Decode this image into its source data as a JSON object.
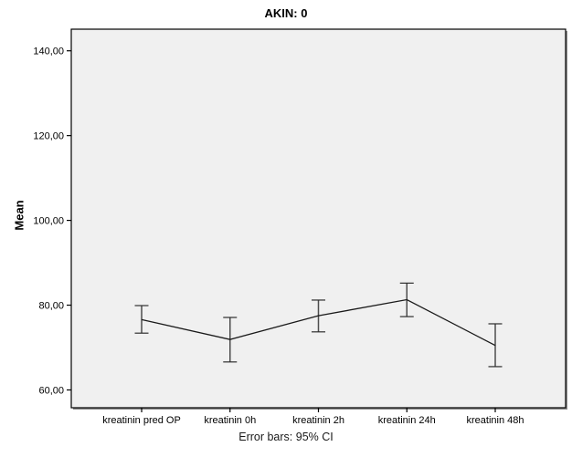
{
  "chart_data": {
    "type": "line",
    "title": "AKIN: 0",
    "ylabel": "Mean",
    "caption": "Error bars: 95% CI",
    "error_bars": "95% CI",
    "legend": "none",
    "grid": false,
    "categories": [
      "kreatinin pred OP",
      "kreatinin 0h",
      "kreatinin 2h",
      "kreatinin 24h",
      "kreatinin 48h"
    ],
    "series": [
      {
        "name": "Mean",
        "means": [
          76.6,
          71.9,
          77.5,
          81.3,
          70.5
        ],
        "ci_low": [
          73.4,
          66.6,
          73.7,
          77.3,
          65.5
        ],
        "ci_high": [
          79.9,
          77.1,
          81.2,
          85.2,
          75.6
        ]
      }
    ],
    "yticks": [
      {
        "value": 60,
        "label": "60,00"
      },
      {
        "value": 80,
        "label": "80,00"
      },
      {
        "value": 100,
        "label": "100,00"
      },
      {
        "value": 120,
        "label": "120,00"
      },
      {
        "value": 140,
        "label": "140,00"
      }
    ],
    "ylim": [
      55.8,
      145.1
    ],
    "colors": {
      "plot_background": "#f0f0f0",
      "plot_border": "#000000",
      "plot_shadow": "#8c8c8c",
      "mean_line": "#1a1a1a",
      "error_bar": "#4d4d4d",
      "error_cap": "#2e2e2e",
      "tick": "#000000"
    }
  }
}
